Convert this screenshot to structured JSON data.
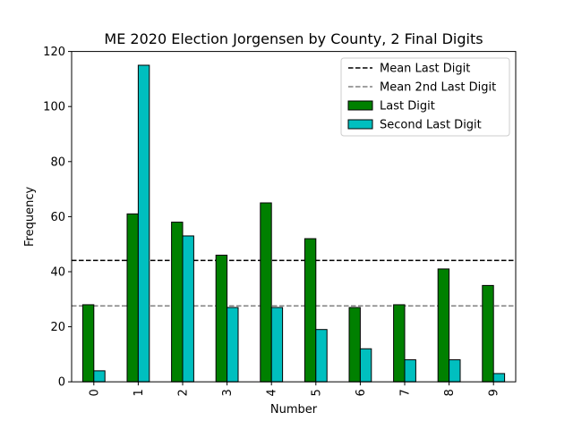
{
  "chart_data": {
    "type": "bar",
    "title": "ME 2020 Election Jorgensen by County, 2 Final Digits",
    "xlabel": "Number",
    "ylabel": "Frequency",
    "categories": [
      "0",
      "1",
      "2",
      "3",
      "4",
      "5",
      "6",
      "7",
      "8",
      "9"
    ],
    "series": [
      {
        "name": "Last Digit",
        "color": "#008000",
        "values": [
          28,
          61,
          58,
          46,
          65,
          52,
          27,
          28,
          41,
          35
        ]
      },
      {
        "name": "Second Last Digit",
        "color": "#00bfbf",
        "values": [
          4,
          115,
          53,
          27,
          27,
          19,
          12,
          8,
          8,
          3
        ]
      }
    ],
    "reference_lines": [
      {
        "name": "Mean Last Digit",
        "value": 44.1,
        "color": "#000000",
        "style": "dashed"
      },
      {
        "name": "Mean 2nd Last Digit",
        "value": 27.6,
        "color": "#808080",
        "style": "dashed"
      }
    ],
    "ylim": [
      0,
      120
    ],
    "yticks": [
      "0",
      "20",
      "40",
      "60",
      "80",
      "100",
      "120"
    ],
    "xtick_rotation": "vertical",
    "grid": false,
    "legend_placement": "top-right"
  }
}
